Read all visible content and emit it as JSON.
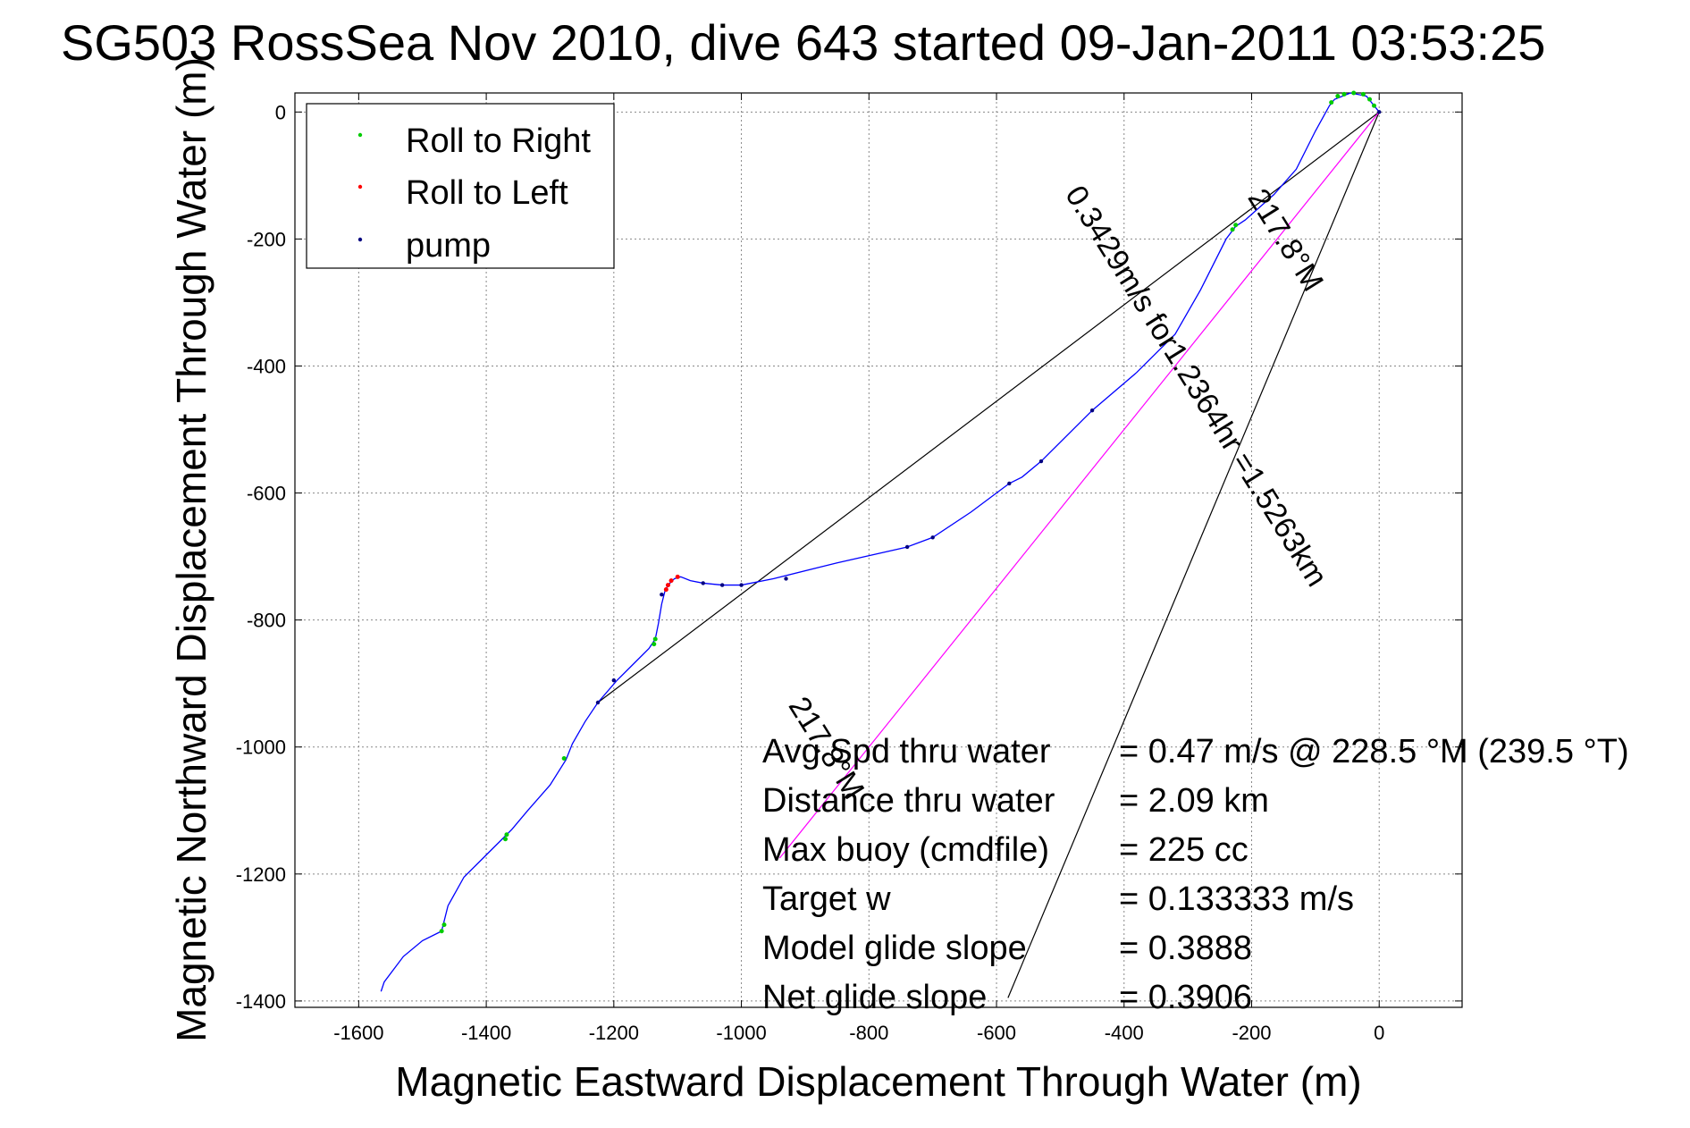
{
  "chart_data": {
    "type": "line",
    "title": "SG5​03 RossSea Nov 2010, dive 643 started 09-Jan-2011 03:53:25",
    "title_overlay": "SG503 RossSea Nov 2010, dive 643 started 09-Jan-2011 03:53:25",
    "xlabel": "Magnetic Eastward Displacement Through Water (m)",
    "ylabel": "Magnetic Northward Displacement Through Water (m)",
    "xlim": [
      -1700,
      130
    ],
    "ylim": [
      -1410,
      30
    ],
    "xticks": [
      -1600,
      -1400,
      -1200,
      -1000,
      -800,
      -600,
      -400,
      -200,
      0
    ],
    "yticks": [
      0,
      -200,
      -400,
      -600,
      -800,
      -1000,
      -1200,
      -1400
    ],
    "xtick_labels": [
      "-1600",
      "-1400",
      "-1200",
      "-1000",
      "-800",
      "-600",
      "-400",
      "-200",
      "0"
    ],
    "ytick_labels": [
      "0",
      "-200",
      "-400",
      "-600",
      "-800",
      "-1000",
      "-1200",
      "-1400"
    ],
    "grid": true,
    "legend_position": "top-left",
    "legend": [
      {
        "label": "Roll to Right",
        "color": "#00cc00"
      },
      {
        "label": "Roll to Left",
        "color": "#ff0000"
      },
      {
        "label": "pump",
        "color": "#000080"
      }
    ],
    "track": {
      "name": "track",
      "color": "#0000ff",
      "points": [
        [
          0,
          0
        ],
        [
          -20,
          25
        ],
        [
          -45,
          30
        ],
        [
          -70,
          20
        ],
        [
          -78,
          10
        ],
        [
          -100,
          -30
        ],
        [
          -130,
          -90
        ],
        [
          -165,
          -130
        ],
        [
          -210,
          -170
        ],
        [
          -225,
          -180
        ],
        [
          -240,
          -200
        ],
        [
          -280,
          -280
        ],
        [
          -320,
          -350
        ],
        [
          -380,
          -410
        ],
        [
          -450,
          -470
        ],
        [
          -530,
          -550
        ],
        [
          -560,
          -575
        ],
        [
          -580,
          -585
        ],
        [
          -640,
          -630
        ],
        [
          -700,
          -670
        ],
        [
          -740,
          -685
        ],
        [
          -850,
          -710
        ],
        [
          -950,
          -735
        ],
        [
          -1000,
          -745
        ],
        [
          -1030,
          -745
        ],
        [
          -1060,
          -742
        ],
        [
          -1080,
          -738
        ],
        [
          -1095,
          -732
        ],
        [
          -1105,
          -735
        ],
        [
          -1115,
          -745
        ],
        [
          -1120,
          -755
        ],
        [
          -1125,
          -775
        ],
        [
          -1130,
          -805
        ],
        [
          -1135,
          -830
        ],
        [
          -1145,
          -845
        ],
        [
          -1170,
          -870
        ],
        [
          -1195,
          -895
        ],
        [
          -1225,
          -930
        ],
        [
          -1245,
          -960
        ],
        [
          -1265,
          -995
        ],
        [
          -1275,
          -1020
        ],
        [
          -1300,
          -1060
        ],
        [
          -1335,
          -1100
        ],
        [
          -1360,
          -1130
        ],
        [
          -1375,
          -1145
        ],
        [
          -1400,
          -1170
        ],
        [
          -1435,
          -1205
        ],
        [
          -1460,
          -1250
        ],
        [
          -1470,
          -1290
        ],
        [
          -1500,
          -1305
        ],
        [
          -1530,
          -1330
        ],
        [
          -1560,
          -1370
        ],
        [
          -1565,
          -1385
        ]
      ]
    },
    "roll_right_points": [
      [
        -75,
        15
      ],
      [
        -65,
        25
      ],
      [
        -55,
        28
      ],
      [
        -40,
        30
      ],
      [
        -25,
        28
      ],
      [
        -15,
        20
      ],
      [
        -8,
        10
      ],
      [
        -225,
        -178
      ],
      [
        -230,
        -185
      ],
      [
        -1135,
        -830
      ],
      [
        -1137,
        -838
      ],
      [
        -1278,
        -1018
      ],
      [
        -1368,
        -1138
      ],
      [
        -1370,
        -1145
      ],
      [
        -1466,
        -1280
      ],
      [
        -1470,
        -1290
      ]
    ],
    "roll_left_points": [
      [
        -1110,
        -738
      ],
      [
        -1100,
        -732
      ],
      [
        -1115,
        -745
      ],
      [
        -1118,
        -752
      ]
    ],
    "pump_points": [
      [
        0,
        0
      ],
      [
        -450,
        -470
      ],
      [
        -530,
        -550
      ],
      [
        -580,
        -585
      ],
      [
        -700,
        -670
      ],
      [
        -740,
        -685
      ],
      [
        -930,
        -735
      ],
      [
        -1000,
        -745
      ],
      [
        -1030,
        -745
      ],
      [
        -1060,
        -742
      ],
      [
        -1125,
        -760
      ],
      [
        -1200,
        -895
      ],
      [
        -1225,
        -930
      ]
    ],
    "reference_lines": [
      {
        "color": "#000000",
        "points": [
          [
            0,
            0
          ],
          [
            -1225,
            -930
          ]
        ]
      },
      {
        "color": "#000000",
        "points": [
          [
            0,
            0
          ],
          [
            -582,
            -1395
          ]
        ]
      },
      {
        "color": "#ff00ff",
        "points": [
          [
            0,
            0
          ],
          [
            -940,
            -1175
          ]
        ]
      }
    ],
    "annotations": [
      {
        "text": "217.8°M",
        "x": -160,
        "y": -210,
        "angle": 58
      },
      {
        "text": "0.3429m/s for1.2364hr =1.5263km",
        "x": -300,
        "y": -440,
        "angle": 58
      },
      {
        "text": "217.8°M",
        "x": -880,
        "y": -1010,
        "angle": 58
      }
    ],
    "stats": [
      {
        "label": "Avg Spd thru water",
        "value": "=  0.47 m/s @ 228.5 °M (239.5 °T)"
      },
      {
        "label": "Distance thru water",
        "value": "=  2.09 km"
      },
      {
        "label": "Max buoy (cmdfile)",
        "value": "= 225 cc"
      },
      {
        "label": "Target w",
        "value": "= 0.133333 m/s"
      },
      {
        "label": "Model glide slope",
        "value": "= 0.3888"
      },
      {
        "label": "Net glide slope",
        "value": "= 0.3906"
      }
    ]
  }
}
